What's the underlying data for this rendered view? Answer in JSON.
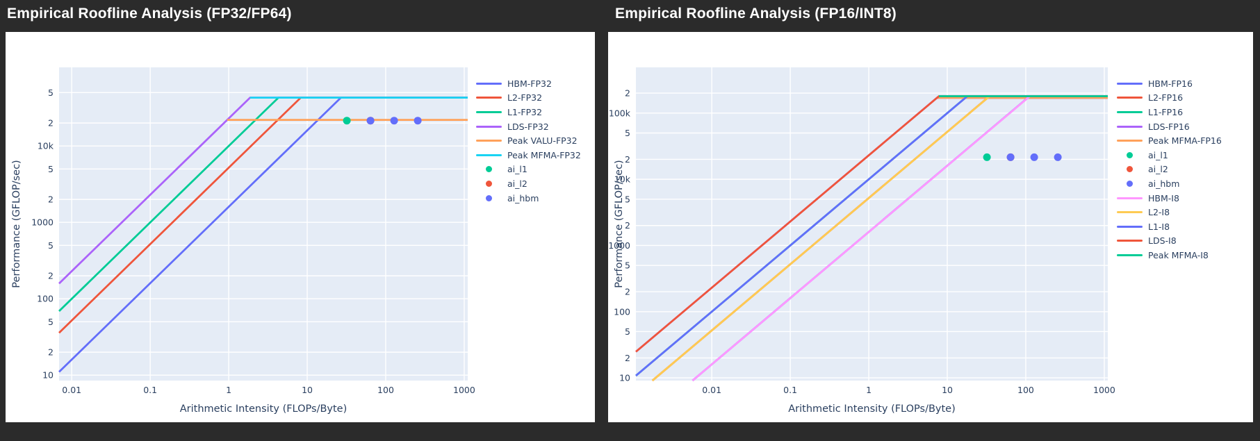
{
  "page": {
    "background_color": "#2b2b2b",
    "plot_background_color": "#e5ecf6",
    "grid_color": "#ffffff",
    "tick_label_color": "#2a3f5f",
    "title_color": "#ffffff"
  },
  "chart_data": [
    {
      "type": "line",
      "title": "Empirical Roofline Analysis (FP32/FP64)",
      "xlabel": "Arithmetic Intensity (FLOPs/Byte)",
      "ylabel": "Performance (GFLOP/sec)",
      "x_scale": "log",
      "y_scale": "log",
      "xlim": [
        0.0069,
        1109
      ],
      "ylim": [
        8.5,
        107000
      ],
      "grid": true,
      "legend_position": "right",
      "xticks": [
        {
          "v": 0.01,
          "label": "0.01"
        },
        {
          "v": 0.1,
          "label": "0.1"
        },
        {
          "v": 1,
          "label": "1"
        },
        {
          "v": 10,
          "label": "10"
        },
        {
          "v": 100,
          "label": "100"
        },
        {
          "v": 1000,
          "label": "1000"
        }
      ],
      "yticks": [
        {
          "v": 50000,
          "label": "5"
        },
        {
          "v": 20000,
          "label": "2"
        },
        {
          "v": 10000,
          "label": "10k"
        },
        {
          "v": 5000,
          "label": "5"
        },
        {
          "v": 2000,
          "label": "2"
        },
        {
          "v": 1000,
          "label": "1000"
        },
        {
          "v": 500,
          "label": "5"
        },
        {
          "v": 200,
          "label": "2"
        },
        {
          "v": 100,
          "label": "100"
        },
        {
          "v": 50,
          "label": "5"
        },
        {
          "v": 20,
          "label": "2"
        },
        {
          "v": 10,
          "label": "10"
        }
      ],
      "series": [
        {
          "name": "HBM-FP32",
          "kind": "roof",
          "color": "#636EFA",
          "bw_gb_s": 1600,
          "peak_gflops": 43000
        },
        {
          "name": "L2-FP32",
          "kind": "roof",
          "color": "#EF553B",
          "bw_gb_s": 5200,
          "peak_gflops": 43000
        },
        {
          "name": "L1-FP32",
          "kind": "roof",
          "color": "#00CC96",
          "bw_gb_s": 10000,
          "peak_gflops": 43000
        },
        {
          "name": "LDS-FP32",
          "kind": "roof",
          "color": "#AB63FA",
          "bw_gb_s": 23000,
          "peak_gflops": 43000
        },
        {
          "name": "Peak VALU-FP32",
          "kind": "peak",
          "color": "#FFA15A",
          "value_gflops": 22000,
          "x_start": 0.956
        },
        {
          "name": "Peak MFMA-FP32",
          "kind": "peak",
          "color": "#19D3F3",
          "value_gflops": 43000,
          "x_start": 1.87
        },
        {
          "name": "ai_l1",
          "kind": "scatter",
          "color": "#00CC96",
          "points": [
            [
              32,
              21500
            ]
          ]
        },
        {
          "name": "ai_l2",
          "kind": "scatter",
          "color": "#EF553B",
          "points": [
            [
              64,
              21500
            ]
          ]
        },
        {
          "name": "ai_hbm",
          "kind": "scatter",
          "color": "#636EFA",
          "points": [
            [
              64,
              21500
            ],
            [
              128,
              21500
            ],
            [
              256,
              21500
            ]
          ]
        }
      ]
    },
    {
      "type": "line",
      "title": "Empirical Roofline Analysis (FP16/INT8)",
      "xlabel": "Arithmetic Intensity (FLOPs/Byte)",
      "ylabel": "Performance (GFLOP/sec)",
      "x_scale": "log",
      "y_scale": "log",
      "xlim": [
        0.00108,
        1109
      ],
      "ylim": [
        9.1,
        490000
      ],
      "grid": true,
      "legend_position": "right",
      "xticks": [
        {
          "v": 0.01,
          "label": "0.01"
        },
        {
          "v": 0.1,
          "label": "0.1"
        },
        {
          "v": 1,
          "label": "1"
        },
        {
          "v": 10,
          "label": "10"
        },
        {
          "v": 100,
          "label": "100"
        },
        {
          "v": 1000,
          "label": "1000"
        }
      ],
      "yticks": [
        {
          "v": 200000,
          "label": "2"
        },
        {
          "v": 100000,
          "label": "100k"
        },
        {
          "v": 50000,
          "label": "5"
        },
        {
          "v": 20000,
          "label": "2"
        },
        {
          "v": 10000,
          "label": "10k"
        },
        {
          "v": 5000,
          "label": "5"
        },
        {
          "v": 2000,
          "label": "2"
        },
        {
          "v": 1000,
          "label": "1000"
        },
        {
          "v": 500,
          "label": "5"
        },
        {
          "v": 200,
          "label": "2"
        },
        {
          "v": 100,
          "label": "100"
        },
        {
          "v": 50,
          "label": "5"
        },
        {
          "v": 20,
          "label": "2"
        },
        {
          "v": 10,
          "label": "10"
        }
      ],
      "series": [
        {
          "name": "HBM-FP16",
          "kind": "roof",
          "color": "#636EFA",
          "bw_gb_s": 1600,
          "peak_gflops": 170000
        },
        {
          "name": "L2-FP16",
          "kind": "roof",
          "color": "#EF553B",
          "bw_gb_s": 5200,
          "peak_gflops": 170000
        },
        {
          "name": "L1-FP16",
          "kind": "roof",
          "color": "#00CC96",
          "bw_gb_s": 10000,
          "peak_gflops": 170000
        },
        {
          "name": "LDS-FP16",
          "kind": "roof",
          "color": "#AB63FA",
          "bw_gb_s": 23000,
          "peak_gflops": 170000
        },
        {
          "name": "Peak MFMA-FP16",
          "kind": "peak",
          "color": "#FFA15A",
          "value_gflops": 170000,
          "x_start": 7.39
        },
        {
          "name": "ai_l1",
          "kind": "scatter",
          "color": "#00CC96",
          "points": [
            [
              32,
              21500
            ]
          ]
        },
        {
          "name": "ai_l2",
          "kind": "scatter",
          "color": "#EF553B",
          "points": [
            [
              64,
              21500
            ]
          ]
        },
        {
          "name": "ai_hbm",
          "kind": "scatter",
          "color": "#636EFA",
          "points": [
            [
              64,
              21500
            ],
            [
              128,
              21500
            ],
            [
              256,
              21500
            ]
          ]
        },
        {
          "name": "HBM-I8",
          "kind": "roof",
          "color": "#FF97FF",
          "bw_gb_s": 1600,
          "peak_gflops": 180000
        },
        {
          "name": "L2-I8",
          "kind": "roof",
          "color": "#FECB52",
          "bw_gb_s": 5200,
          "peak_gflops": 180000
        },
        {
          "name": "L1-I8",
          "kind": "roof",
          "color": "#636EFA",
          "bw_gb_s": 10000,
          "peak_gflops": 180000
        },
        {
          "name": "LDS-I8",
          "kind": "roof",
          "color": "#EF553B",
          "bw_gb_s": 23000,
          "peak_gflops": 180000
        },
        {
          "name": "Peak MFMA-I8",
          "kind": "peak",
          "color": "#00CC96",
          "value_gflops": 180000,
          "x_start": 7.83
        }
      ]
    }
  ]
}
